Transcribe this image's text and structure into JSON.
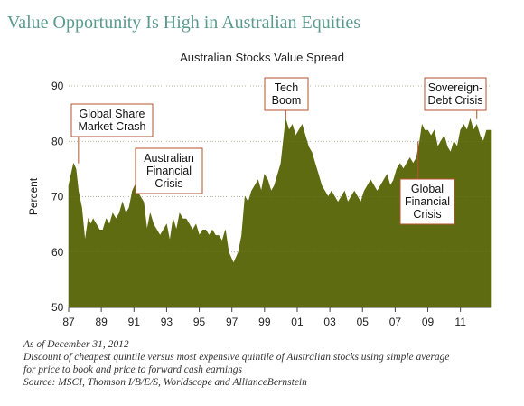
{
  "title": "Value Opportunity Is High in Australian Equities",
  "notes": [
    "As of December 31, 2012",
    "Discount of cheapest quintile versus most expensive quintile of Australian stocks using simple average",
    "for price to book and price to forward cash earnings",
    "Source: MSCI, Thomson I/B/E/S, Worldscope and AllianceBernstein"
  ],
  "chart_data": {
    "type": "area",
    "title": "Australian Stocks Value Spread",
    "ylabel": "Percent",
    "xlabel": "",
    "ylim": [
      50,
      90
    ],
    "xlim": [
      1987.0,
      2012.9
    ],
    "yticks": [
      50,
      60,
      70,
      80,
      90
    ],
    "xtick_labels": [
      "87",
      "89",
      "91",
      "93",
      "95",
      "97",
      "99",
      "01",
      "03",
      "05",
      "07",
      "09",
      "11"
    ],
    "xtick_values": [
      1987,
      1989,
      1991,
      1993,
      1995,
      1997,
      1999,
      2001,
      2003,
      2005,
      2007,
      2009,
      2011
    ],
    "grid": true,
    "color": "#5e6b10",
    "series": [
      {
        "x": [
          1987.0,
          1987.15,
          1987.3,
          1987.45,
          1987.6,
          1987.8,
          1988.0,
          1988.2,
          1988.35,
          1988.5,
          1988.7,
          1988.9,
          1989.1,
          1989.3,
          1989.5,
          1989.7,
          1989.9,
          1990.1,
          1990.3,
          1990.5,
          1990.7,
          1990.9,
          1991.05,
          1991.2,
          1991.4,
          1991.6,
          1991.8,
          1992.0,
          1992.2,
          1992.4,
          1992.6,
          1992.8,
          1993.0,
          1993.2,
          1993.4,
          1993.6,
          1993.8,
          1994.0,
          1994.2,
          1994.4,
          1994.6,
          1994.8,
          1995.0,
          1995.2,
          1995.4,
          1995.6,
          1995.8,
          1996.0,
          1996.2,
          1996.4,
          1996.6,
          1996.8,
          1996.95,
          1997.1,
          1997.25,
          1997.4,
          1997.6,
          1997.8,
          1998.0,
          1998.2,
          1998.4,
          1998.6,
          1998.8,
          1999.0,
          1999.2,
          1999.4,
          1999.6,
          1999.8,
          2000.0,
          2000.15,
          2000.3,
          2000.5,
          2000.7,
          2000.9,
          2001.1,
          2001.3,
          2001.5,
          2001.7,
          2001.9,
          2002.1,
          2002.3,
          2002.5,
          2002.7,
          2002.9,
          2003.1,
          2003.3,
          2003.5,
          2003.7,
          2003.9,
          2004.1,
          2004.3,
          2004.5,
          2004.7,
          2004.9,
          2005.1,
          2005.3,
          2005.5,
          2005.7,
          2005.9,
          2006.1,
          2006.3,
          2006.5,
          2006.7,
          2006.9,
          2007.1,
          2007.3,
          2007.5,
          2007.7,
          2007.9,
          2008.1,
          2008.3,
          2008.5,
          2008.65,
          2008.8,
          2009.0,
          2009.2,
          2009.4,
          2009.6,
          2009.8,
          2010.0,
          2010.2,
          2010.4,
          2010.6,
          2010.8,
          2011.0,
          2011.2,
          2011.4,
          2011.6,
          2011.8,
          2012.0,
          2012.2,
          2012.4,
          2012.6,
          2012.9
        ],
        "y": [
          72,
          74,
          76,
          75,
          71,
          68,
          62,
          66,
          65,
          66,
          65,
          64,
          64,
          66,
          65,
          67,
          66,
          67,
          69,
          67,
          68,
          71,
          72,
          71,
          70,
          69,
          64,
          67,
          65,
          64,
          63,
          64,
          65,
          62,
          66,
          64,
          67,
          66,
          66,
          65,
          64,
          65,
          63,
          64,
          64,
          63,
          64,
          63,
          63,
          62,
          64,
          60,
          59,
          58,
          59,
          60,
          63,
          70,
          69,
          71,
          72,
          73,
          71,
          74,
          73,
          71,
          72,
          74,
          76,
          80,
          84,
          82,
          83,
          81,
          82,
          83,
          81,
          79,
          78,
          76,
          74,
          72,
          71,
          70,
          71,
          70,
          69,
          70,
          71,
          69,
          70,
          71,
          70,
          69,
          71,
          72,
          73,
          72,
          71,
          72,
          73,
          74,
          72,
          73,
          75,
          76,
          75,
          76,
          77,
          76,
          77,
          80,
          83,
          82,
          82,
          81,
          82,
          79,
          80,
          81,
          79,
          78,
          80,
          79,
          82,
          83,
          82,
          84,
          82,
          83,
          81,
          80,
          82,
          82
        ]
      }
    ],
    "annotations": [
      {
        "label": [
          "Global Share",
          "Market Crash"
        ],
        "x": 1987.6,
        "y": 76
      },
      {
        "label": [
          "Australian",
          "Financial",
          "Crisis"
        ],
        "x": 1991.1,
        "y": 72
      },
      {
        "label": [
          "Tech",
          "Boom"
        ],
        "x": 2000.3,
        "y": 84
      },
      {
        "label": [
          "Global",
          "Financial",
          "Crisis"
        ],
        "x": 2008.4,
        "y": 80
      },
      {
        "label": [
          "Sovereign-",
          "Debt Crisis"
        ],
        "x": 2012.0,
        "y": 84
      }
    ]
  }
}
